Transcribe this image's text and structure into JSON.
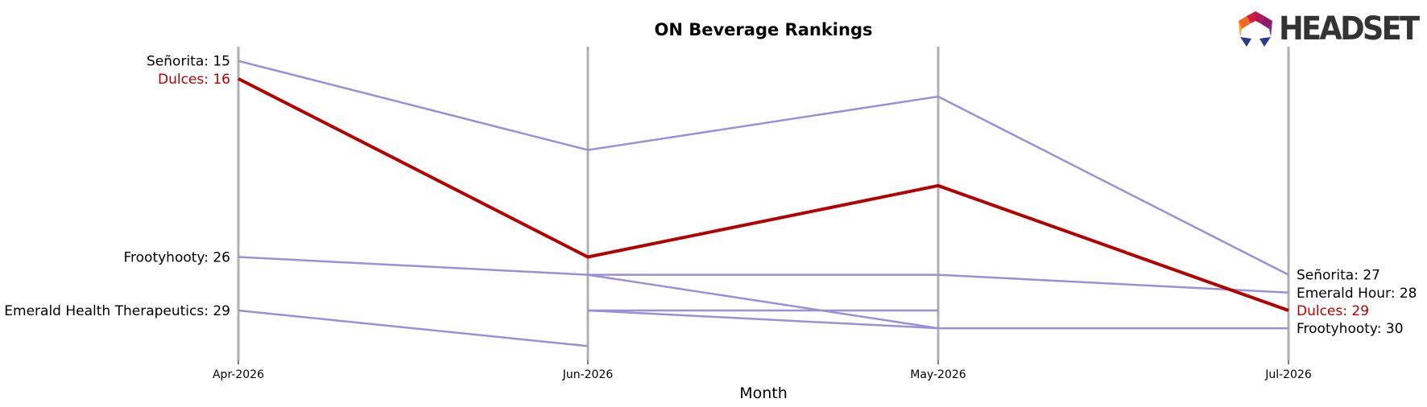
{
  "brand": {
    "logo_text": "HEADSET"
  },
  "chart_data": {
    "type": "line",
    "title": "ON Beverage Rankings",
    "xlabel": "Month",
    "ylabel": "",
    "categories": [
      "Apr-2026",
      "Jun-2026",
      "May-2026",
      "Jul-2026"
    ],
    "y_axis": "rank (inverted, 1 at top)",
    "ylim": [
      14.2,
      31.8
    ],
    "grid": false,
    "highlight_color": "#b30000",
    "series_color": "#9b8fd6",
    "axis_line_color": "#b0b0b0",
    "series": [
      {
        "name": "Señorita",
        "highlight": false,
        "values": [
          15,
          20,
          17,
          27
        ]
      },
      {
        "name": "Dulces",
        "highlight": true,
        "values": [
          16,
          26,
          22,
          29
        ]
      },
      {
        "name": "Frootyhooty",
        "highlight": false,
        "values": [
          26,
          27,
          30,
          30
        ]
      },
      {
        "name": "Emerald Health Therapeutics",
        "highlight": false,
        "values": [
          29,
          31,
          null,
          null
        ]
      },
      {
        "name": "Emerald Hour",
        "highlight": false,
        "values": [
          null,
          27,
          27,
          28
        ]
      },
      {
        "name": "",
        "highlight": false,
        "values": [
          null,
          29,
          30,
          null
        ]
      },
      {
        "name": "",
        "highlight": false,
        "values": [
          null,
          29,
          29,
          null
        ]
      }
    ],
    "left_labels": [
      {
        "text": "Señorita: 15",
        "value": 15,
        "highlight": false
      },
      {
        "text": "Dulces: 16",
        "value": 16,
        "highlight": true
      },
      {
        "text": "Frootyhooty: 26",
        "value": 26,
        "highlight": false
      },
      {
        "text": "Emerald Health Therapeutics: 29",
        "value": 29,
        "highlight": false
      }
    ],
    "right_labels": [
      {
        "text": "Señorita: 27",
        "value": 27,
        "highlight": false
      },
      {
        "text": "Emerald Hour: 28",
        "value": 28,
        "highlight": false
      },
      {
        "text": "Dulces: 29",
        "value": 29,
        "highlight": true
      },
      {
        "text": "Frootyhooty: 30",
        "value": 30,
        "highlight": false
      }
    ]
  }
}
